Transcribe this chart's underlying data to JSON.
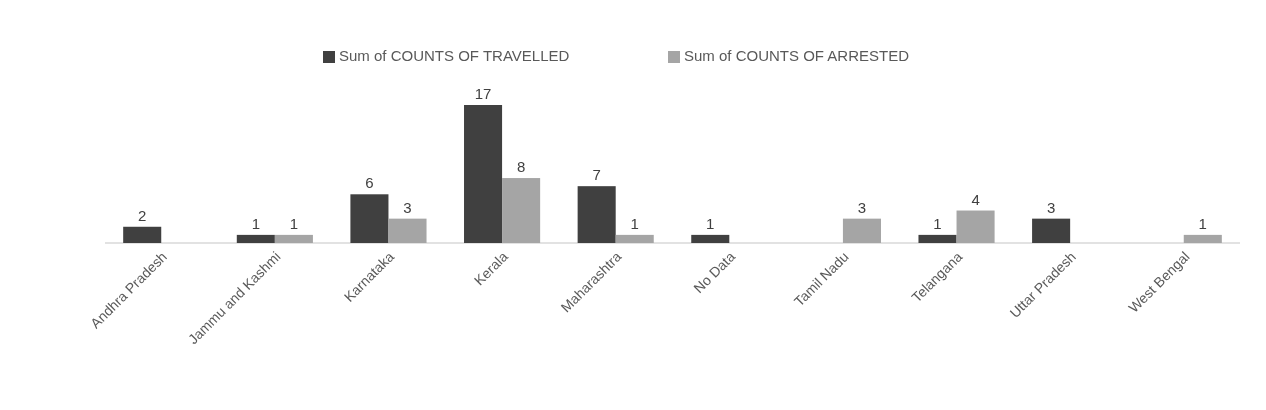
{
  "chart_data": {
    "type": "bar",
    "categories": [
      "Andhra Pradesh",
      "Jammu and Kashmi",
      "Karnataka",
      "Kerala",
      "Maharashtra",
      "No Data",
      "Tamil Nadu",
      "Telangana",
      "Uttar Pradesh",
      "West Bengal"
    ],
    "series": [
      {
        "name": "Sum of COUNTS OF TRAVELLED",
        "color": "#404040",
        "values": [
          2,
          1,
          6,
          17,
          7,
          1,
          null,
          1,
          3,
          null
        ]
      },
      {
        "name": "Sum of COUNTS OF ARRESTED",
        "color": "#a5a5a5",
        "values": [
          null,
          1,
          3,
          8,
          1,
          null,
          3,
          4,
          null,
          1
        ]
      }
    ],
    "data_labels": true,
    "legend": "top"
  }
}
